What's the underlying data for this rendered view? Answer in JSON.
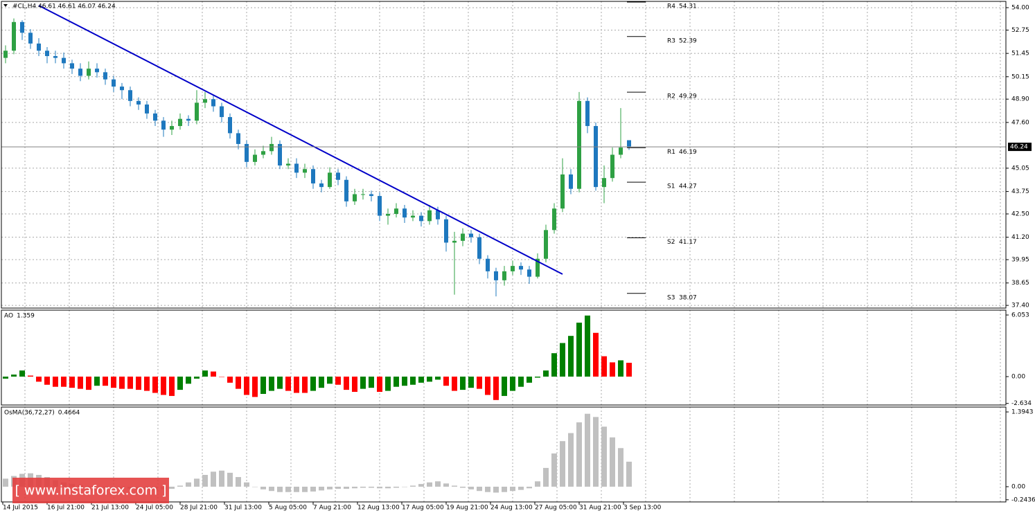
{
  "chart_data": [
    {
      "type": "candlestick",
      "title": "#CL,H4 46.61 46.61 46.07 46.24",
      "open": [
        51.2,
        51.6,
        53.2,
        52.6,
        52.0,
        51.6,
        51.3,
        51.2,
        50.9,
        50.6,
        50.2,
        50.6,
        50.4,
        50.0,
        49.6,
        49.4,
        48.8,
        48.6,
        48.1,
        47.7,
        47.2,
        47.4,
        47.8,
        47.7,
        48.7,
        48.9,
        48.5,
        47.9,
        47.0,
        46.4,
        45.4,
        45.8,
        46.0,
        46.4,
        45.2,
        45.3,
        44.8,
        45.0,
        44.2,
        44.0,
        44.8,
        44.4,
        43.2,
        43.6,
        43.6,
        43.5,
        42.4,
        42.5,
        42.8,
        42.3,
        42.4,
        42.1,
        42.7,
        42.2,
        40.9,
        41.0,
        41.4,
        41.2,
        40.0,
        39.3,
        38.8,
        39.3,
        39.6,
        39.4,
        39.0,
        40.0,
        41.6,
        42.8,
        44.7,
        43.9,
        48.8,
        47.4,
        44.0,
        44.5,
        45.8,
        46.61
      ],
      "high": [
        51.9,
        53.4,
        53.3,
        52.8,
        52.3,
        51.8,
        51.6,
        51.5,
        51.1,
        50.9,
        51.0,
        50.9,
        50.6,
        50.2,
        49.8,
        49.6,
        49.0,
        48.8,
        48.3,
        47.9,
        47.7,
        48.1,
        48.0,
        49.4,
        49.3,
        49.1,
        48.7,
        48.1,
        47.2,
        46.6,
        46.1,
        46.3,
        46.8,
        46.6,
        45.6,
        45.6,
        45.3,
        45.2,
        44.4,
        45.1,
        45.0,
        44.6,
        43.9,
        43.9,
        43.8,
        43.7,
        42.8,
        43.1,
        43.0,
        42.7,
        42.6,
        43.0,
        42.9,
        42.4,
        41.5,
        41.7,
        41.6,
        41.4,
        40.2,
        39.5,
        39.6,
        39.9,
        39.8,
        39.6,
        40.3,
        41.9,
        43.1,
        45.6,
        45.0,
        49.3,
        49.0,
        47.6,
        45.2,
        46.2,
        48.4,
        46.61
      ],
      "low": [
        50.9,
        51.4,
        52.2,
        51.7,
        51.3,
        50.9,
        50.9,
        50.6,
        50.3,
        49.9,
        50.0,
        50.1,
        49.7,
        49.3,
        48.9,
        48.5,
        48.3,
        47.8,
        47.4,
        46.8,
        46.9,
        47.2,
        47.4,
        47.5,
        48.4,
        48.2,
        47.6,
        46.7,
        46.1,
        45.1,
        45.2,
        45.6,
        45.8,
        45.0,
        45.0,
        44.5,
        44.5,
        43.9,
        43.7,
        43.9,
        44.1,
        42.9,
        43.0,
        43.3,
        43.2,
        42.1,
        41.9,
        42.3,
        42.0,
        42.1,
        41.8,
        41.9,
        41.9,
        40.4,
        38.0,
        40.7,
        40.9,
        39.7,
        38.9,
        37.9,
        38.5,
        39.1,
        39.1,
        38.6,
        38.9,
        39.8,
        41.4,
        42.6,
        43.6,
        43.7,
        47.0,
        43.8,
        43.1,
        44.3,
        45.6,
        46.07
      ],
      "close": [
        51.6,
        53.2,
        52.6,
        52.0,
        51.6,
        51.3,
        51.2,
        50.9,
        50.6,
        50.2,
        50.6,
        50.4,
        50.0,
        49.6,
        49.4,
        48.8,
        48.6,
        48.1,
        47.7,
        47.2,
        47.4,
        47.8,
        47.7,
        48.7,
        48.9,
        48.5,
        47.9,
        47.0,
        46.4,
        45.4,
        45.8,
        46.0,
        46.4,
        45.2,
        45.3,
        44.8,
        45.0,
        44.2,
        44.0,
        44.8,
        44.4,
        43.2,
        43.6,
        43.6,
        43.5,
        42.4,
        42.5,
        42.8,
        42.3,
        42.4,
        42.1,
        42.7,
        42.2,
        40.9,
        41.0,
        41.4,
        41.2,
        40.0,
        39.3,
        38.8,
        39.3,
        39.6,
        39.4,
        39.0,
        40.0,
        41.6,
        42.8,
        44.7,
        43.9,
        48.8,
        47.4,
        44.0,
        44.5,
        45.8,
        46.2,
        46.24
      ],
      "up_color": "#2ea043",
      "down_color": "#1e78be",
      "ylim": [
        37.25,
        54.35
      ],
      "yticks": [
        {
          "value": 54,
          "label": "54.00"
        },
        52.75,
        51.45,
        50.15,
        {
          "value": 48.9,
          "label": "48.90"
        },
        {
          "value": 47.6,
          "label": "47.60"
        },
        45.05,
        43.75,
        {
          "value": 42.5,
          "label": "42.50"
        },
        {
          "value": 41.2,
          "label": "41.20"
        },
        39.95,
        38.65,
        {
          "value": 37.4,
          "label": "37.40"
        }
      ],
      "grid": true,
      "levels": [
        {
          "name": "R4",
          "value": 54.31
        },
        {
          "name": "R3",
          "value": 52.39
        },
        {
          "name": "R2",
          "value": 49.29
        },
        {
          "name": "R1",
          "value": 46.19
        },
        {
          "name": "S1",
          "value": 44.27
        },
        {
          "name": "S2",
          "value": 41.17
        },
        {
          "name": "S3",
          "value": 38.07
        }
      ],
      "trendline": {
        "x": [
          4,
          67
        ],
        "values": [
          54.12,
          39.14
        ],
        "color": "#0000c8"
      }
    },
    {
      "type": "bar",
      "name": "AO",
      "values": [
        -0.2,
        0.2,
        0.6,
        0.1,
        -0.5,
        -0.8,
        -1.0,
        -1.0,
        -1.1,
        -1.2,
        -1.3,
        -0.9,
        -0.9,
        -1.1,
        -1.2,
        -1.2,
        -1.3,
        -1.4,
        -1.6,
        -1.8,
        -1.9,
        -1.3,
        -0.7,
        -0.2,
        0.6,
        0.5,
        0.0,
        -0.6,
        -1.2,
        -1.8,
        -2.0,
        -1.7,
        -1.4,
        -1.2,
        -1.4,
        -1.6,
        -1.6,
        -1.4,
        -1.1,
        -0.7,
        -0.8,
        -1.3,
        -1.5,
        -1.2,
        -1.1,
        -1.5,
        -1.4,
        -1.0,
        -0.9,
        -0.8,
        -0.6,
        -0.5,
        -0.3,
        -0.9,
        -1.4,
        -1.3,
        -1.1,
        -1.2,
        -1.8,
        -2.3,
        -1.9,
        -1.4,
        -1.0,
        -0.6,
        -0.1,
        0.6,
        2.3,
        3.3,
        4.0,
        5.3,
        6.0,
        4.3,
        2.0,
        1.4,
        1.6,
        1.359
      ],
      "up_color": "#008000",
      "down_color": "#ff0000",
      "ylim": [
        -2.79,
        6.53
      ],
      "yticks": [
        6.053,
        {
          "value": 0,
          "label": "0.00"
        },
        -2.634
      ]
    },
    {
      "type": "bar",
      "name": "OsMA(36,72,27)",
      "values": [
        0.15,
        0.2,
        0.24,
        0.25,
        0.22,
        0.18,
        0.12,
        0.08,
        0.05,
        0.03,
        0.01,
        0.0,
        -0.01,
        -0.02,
        -0.03,
        -0.04,
        -0.05,
        -0.06,
        -0.06,
        -0.05,
        -0.04,
        0.02,
        0.08,
        0.15,
        0.22,
        0.28,
        0.3,
        0.26,
        0.18,
        0.08,
        0.0,
        -0.05,
        -0.08,
        -0.1,
        -0.1,
        -0.1,
        -0.1,
        -0.09,
        -0.07,
        -0.05,
        -0.04,
        -0.04,
        -0.03,
        -0.02,
        -0.02,
        -0.03,
        -0.03,
        -0.02,
        0.0,
        0.02,
        0.05,
        0.08,
        0.1,
        0.06,
        0.02,
        -0.02,
        -0.05,
        -0.08,
        -0.1,
        -0.11,
        -0.1,
        -0.08,
        -0.06,
        -0.03,
        0.1,
        0.35,
        0.62,
        0.85,
        1.0,
        1.2,
        1.36,
        1.3,
        1.12,
        0.92,
        0.72,
        0.4664
      ],
      "color": "#c0c0c0",
      "ylim": [
        -0.284,
        1.485
      ],
      "yticks": [
        1.3943,
        {
          "value": 0,
          "label": "0.00"
        },
        -0.2436
      ]
    }
  ],
  "time_labels": [
    "14 Jul 2015",
    "16 Jul 21:00",
    "21 Jul 13:00",
    "24 Jul 05:00",
    "28 Jul 21:00",
    "31 Jul 13:00",
    "5 Aug 05:00",
    "7 Aug 21:00",
    "12 Aug 13:00",
    "17 Aug 05:00",
    "19 Aug 21:00",
    "24 Aug 13:00",
    "27 Aug 05:00",
    "31 Aug 21:00",
    "3 Sep 13:00"
  ],
  "watermark": "[ www.instaforex.com ]"
}
